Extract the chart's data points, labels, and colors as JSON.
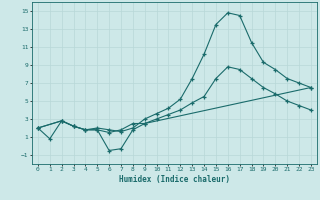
{
  "title": "",
  "xlabel": "Humidex (Indice chaleur)",
  "bg_color": "#cde8e8",
  "grid_color": "#b8d8d8",
  "line_color": "#1a6b6b",
  "xlim": [
    -0.5,
    23.5
  ],
  "ylim": [
    -2.0,
    16.0
  ],
  "xticks": [
    0,
    1,
    2,
    3,
    4,
    5,
    6,
    7,
    8,
    9,
    10,
    11,
    12,
    13,
    14,
    15,
    16,
    17,
    18,
    19,
    20,
    21,
    22,
    23
  ],
  "yticks": [
    -1,
    1,
    3,
    5,
    7,
    9,
    11,
    13,
    15
  ],
  "curve1_x": [
    0,
    1,
    2,
    3,
    4,
    5,
    6,
    7,
    8,
    9,
    10,
    11,
    12,
    13,
    14,
    15,
    16,
    17,
    18,
    19,
    20,
    21,
    22,
    23
  ],
  "curve1_y": [
    2.0,
    0.8,
    2.8,
    2.2,
    1.8,
    2.0,
    1.8,
    1.6,
    2.0,
    3.0,
    3.6,
    4.2,
    5.2,
    7.5,
    10.2,
    13.5,
    14.8,
    14.5,
    11.5,
    9.3,
    8.5,
    7.5,
    7.0,
    6.5
  ],
  "curve2_x": [
    0,
    2,
    3,
    4,
    5,
    6,
    7,
    8,
    9,
    10,
    11,
    12,
    13,
    14,
    15,
    16,
    17,
    18,
    19,
    20,
    21,
    22,
    23
  ],
  "curve2_y": [
    2.0,
    2.8,
    2.2,
    1.8,
    1.8,
    1.5,
    1.8,
    2.5,
    2.5,
    3.0,
    3.5,
    4.0,
    4.8,
    5.5,
    7.5,
    8.8,
    8.5,
    7.5,
    6.5,
    5.8,
    5.0,
    4.5,
    4.0
  ],
  "curve3_x": [
    0,
    2,
    3,
    4,
    5,
    6,
    7,
    8,
    9,
    23
  ],
  "curve3_y": [
    2.0,
    2.8,
    2.2,
    1.8,
    1.8,
    -0.5,
    -0.3,
    1.8,
    2.5,
    6.5
  ]
}
